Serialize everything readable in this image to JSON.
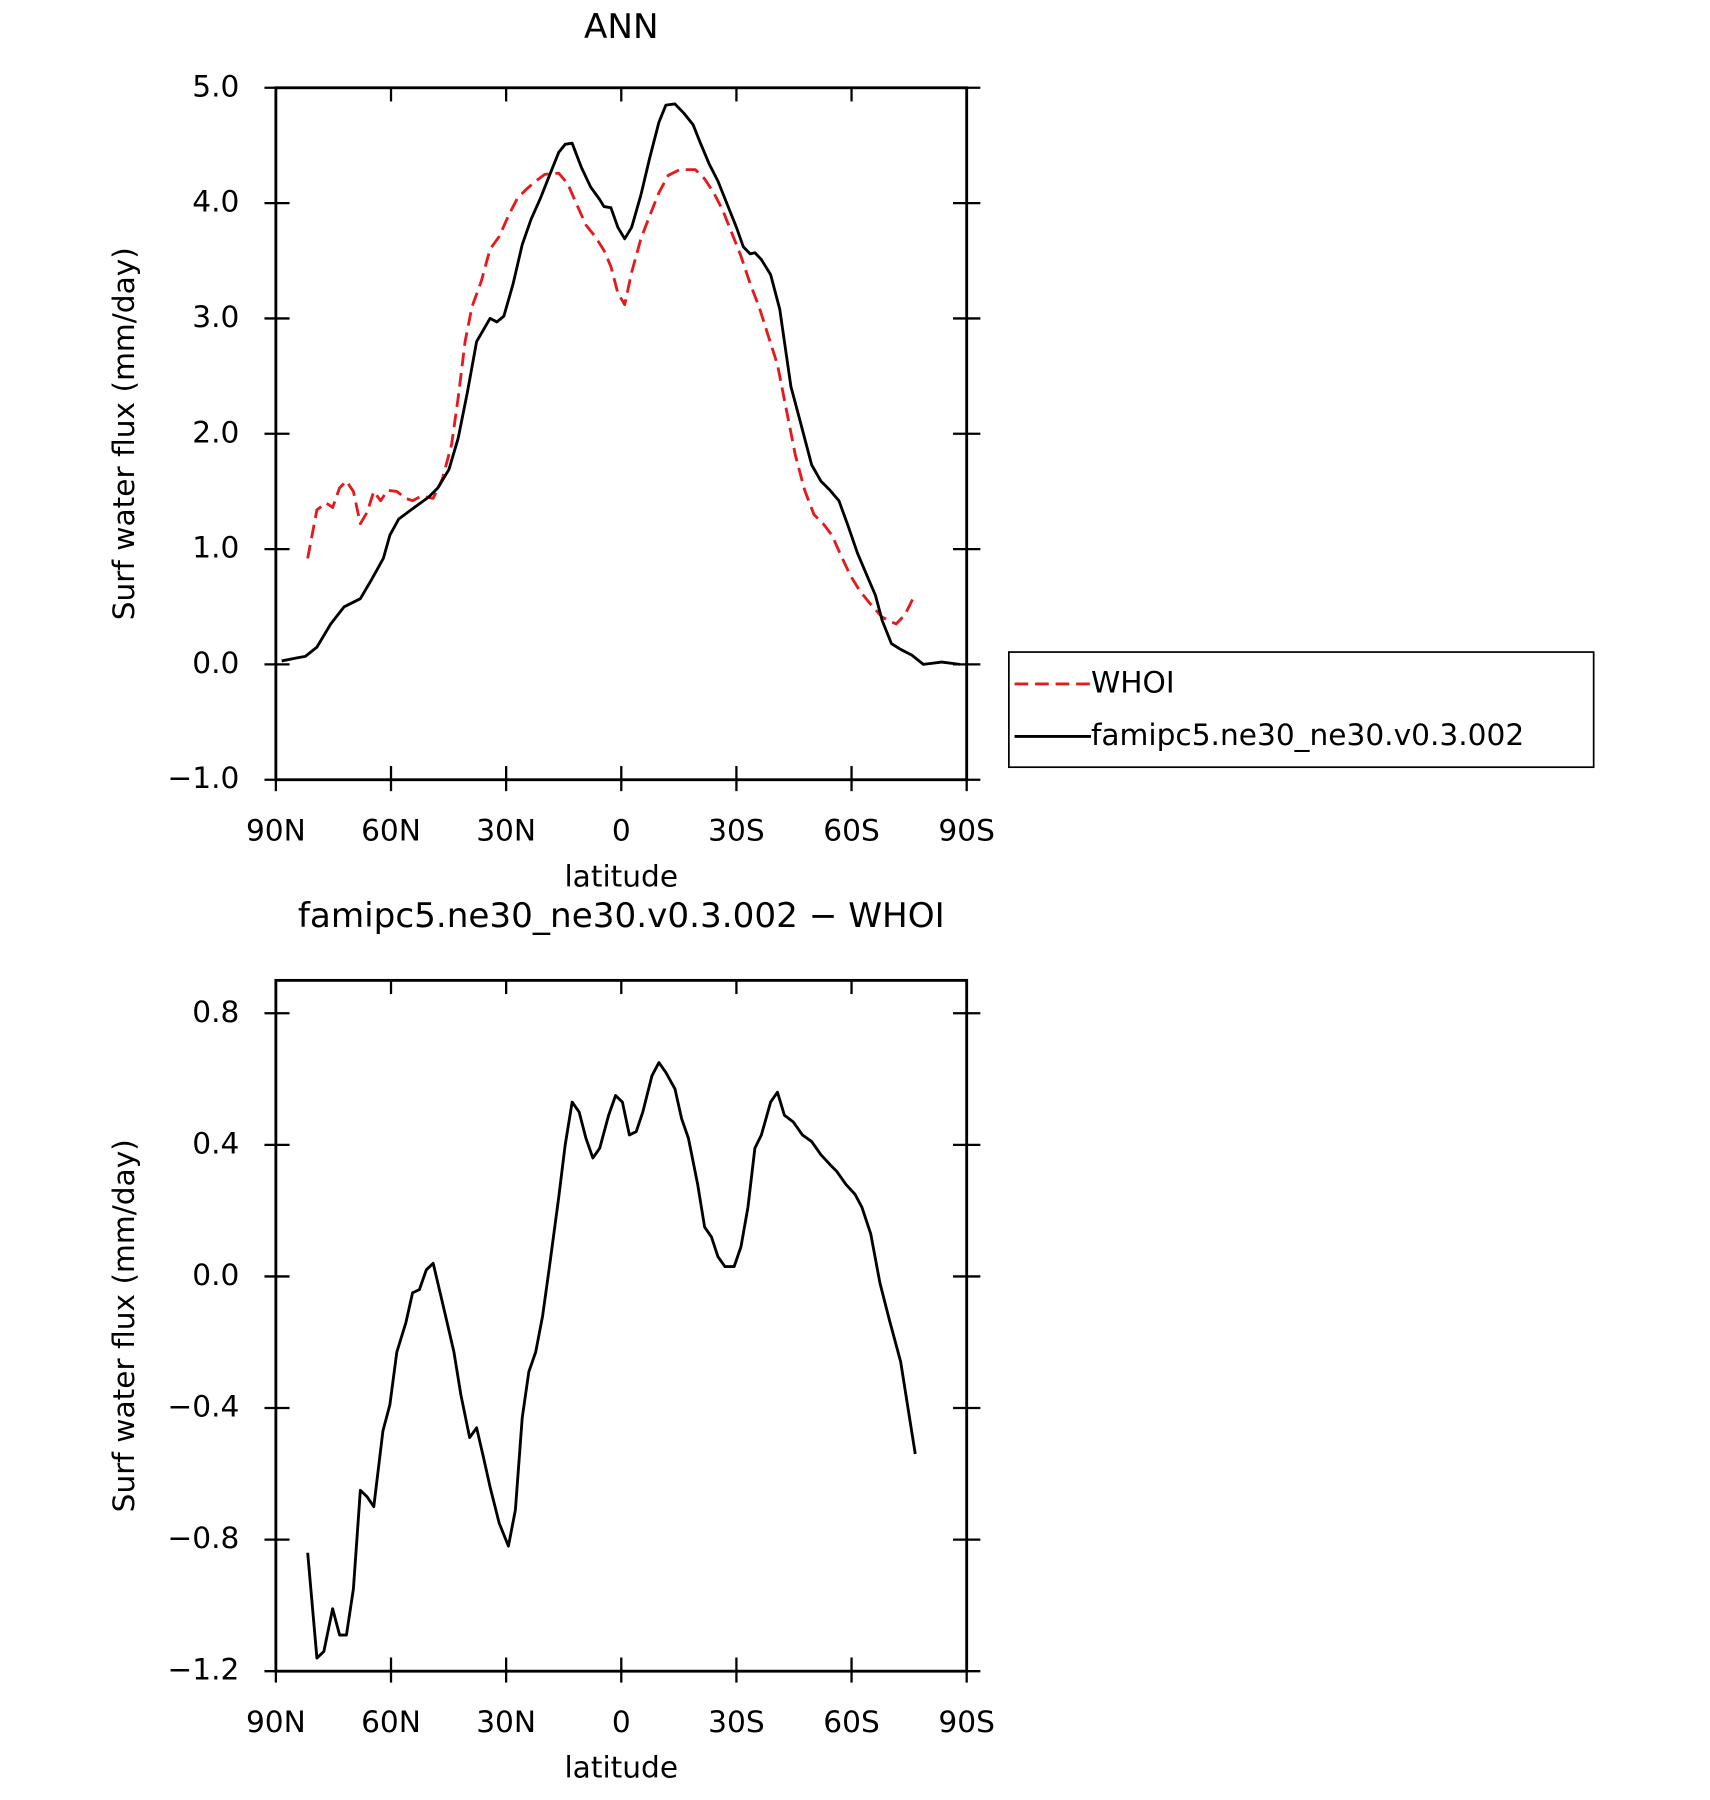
{
  "chart_data": [
    {
      "type": "line",
      "title": "ANN",
      "xlabel": "latitude",
      "ylabel": "Surf water flux (mm/day)",
      "xlim": [
        90,
        -90
      ],
      "xticks": [
        {
          "value": 90,
          "label": "90N"
        },
        {
          "value": 60,
          "label": "60N"
        },
        {
          "value": 30,
          "label": "30N"
        },
        0,
        {
          "value": -30,
          "label": "30S"
        },
        {
          "value": -60,
          "label": "60S"
        },
        {
          "value": -90,
          "label": "90S"
        }
      ],
      "ylim": [
        -1,
        5
      ],
      "yticks": [
        {
          "value": -1,
          "label": "−1.0"
        },
        {
          "value": 0,
          "label": "0.0"
        },
        {
          "value": 1,
          "label": "1.0"
        },
        {
          "value": 2,
          "label": "2.0"
        },
        {
          "value": 3,
          "label": "3.0"
        },
        {
          "value": 4,
          "label": "4.0"
        },
        {
          "value": 5,
          "label": "5.0"
        }
      ],
      "legend": "right",
      "series": [
        {
          "name": "WHOI",
          "color": "#e41a1c",
          "line_style": "dashed",
          "x": [
            81.7,
            79.3,
            76.9,
            75.2,
            73.4,
            71.6,
            69.8,
            68,
            66.2,
            64.5,
            62.7,
            60.9,
            58.5,
            56.1,
            54.4,
            52,
            49,
            46.6,
            44.2,
            42.5,
            40.7,
            38.9,
            36.5,
            34.2,
            31.8,
            29.4,
            27.1,
            24.7,
            22.3,
            19.9,
            16.3,
            14,
            11.6,
            9.2,
            6.8,
            4.5,
            2.7,
            0.9,
            -0.9,
            -2.7,
            -5.1,
            -7.4,
            -9.8,
            -12.2,
            -15.2,
            -19.3,
            -21.7,
            -24.1,
            -26.4,
            -28.8,
            -31.2,
            -33.6,
            -35.9,
            -38.3,
            -40.7,
            -43,
            -45.4,
            -47.8,
            -50.2,
            -52.6,
            -54.9,
            -57.3,
            -59.7,
            -62.1,
            -65,
            -68,
            -71.6,
            -73.9,
            -76.6
          ],
          "values": [
            0.92,
            1.34,
            1.4,
            1.36,
            1.53,
            1.59,
            1.5,
            1.22,
            1.32,
            1.5,
            1.42,
            1.51,
            1.5,
            1.44,
            1.42,
            1.46,
            1.44,
            1.61,
            1.91,
            2.31,
            2.8,
            3.1,
            3.32,
            3.6,
            3.71,
            3.89,
            4.04,
            4.12,
            4.19,
            4.25,
            4.26,
            4.17,
            3.99,
            3.81,
            3.71,
            3.59,
            3.45,
            3.22,
            3.12,
            3.4,
            3.69,
            3.89,
            4.09,
            4.24,
            4.29,
            4.29,
            4.21,
            4.09,
            3.94,
            3.74,
            3.54,
            3.3,
            3.1,
            2.85,
            2.6,
            2.21,
            1.81,
            1.51,
            1.3,
            1.22,
            1.12,
            0.94,
            0.77,
            0.64,
            0.52,
            0.41,
            0.35,
            0.43,
            0.61
          ]
        },
        {
          "name": "famipc5.ne30_ne30.v0.3.002",
          "color": "#000000",
          "line_style": "solid",
          "x": [
            88.5,
            84,
            82.3,
            79.3,
            75.7,
            72.2,
            68,
            65,
            62,
            60.3,
            58,
            54.4,
            50.2,
            47.8,
            44.9,
            42.5,
            40.1,
            37.7,
            34.2,
            32.4,
            30.6,
            28.2,
            25.8,
            23.5,
            21.1,
            18.7,
            16.3,
            14.6,
            12.8,
            10.4,
            8,
            5.6,
            4.5,
            2.7,
            0.9,
            -0.9,
            -2.7,
            -5.1,
            -7.4,
            -9.8,
            -11.6,
            -14,
            -16.3,
            -18.7,
            -20.5,
            -22.9,
            -25.2,
            -27.6,
            -30,
            -31.8,
            -33.6,
            -34.8,
            -36.5,
            -38.9,
            -41.3,
            -44.2,
            -46.6,
            -49.6,
            -52,
            -54.4,
            -56.7,
            -59.1,
            -61.5,
            -63.9,
            -66.2,
            -68,
            -70.4,
            -72.8,
            -75.7,
            -78.7,
            -83.5,
            -88.2
          ],
          "values": [
            0.03,
            0.06,
            0.07,
            0.15,
            0.35,
            0.5,
            0.57,
            0.74,
            0.92,
            1.12,
            1.26,
            1.35,
            1.45,
            1.53,
            1.69,
            1.96,
            2.36,
            2.8,
            3,
            2.97,
            3.02,
            3.3,
            3.64,
            3.86,
            4.04,
            4.24,
            4.44,
            4.51,
            4.52,
            4.31,
            4.14,
            4.03,
            3.97,
            3.96,
            3.79,
            3.69,
            3.79,
            4.07,
            4.39,
            4.7,
            4.85,
            4.86,
            4.78,
            4.68,
            4.53,
            4.34,
            4.19,
            3.99,
            3.79,
            3.62,
            3.56,
            3.57,
            3.51,
            3.38,
            3.08,
            2.41,
            2.11,
            1.73,
            1.59,
            1.51,
            1.42,
            1.2,
            0.97,
            0.78,
            0.6,
            0.38,
            0.18,
            0.13,
            0.08,
            0,
            0.02,
            0
          ]
        }
      ]
    },
    {
      "type": "line",
      "title": "famipc5.ne30_ne30.v0.3.002 − WHOI",
      "xlabel": "latitude",
      "ylabel": "Surf water flux (mm/day)",
      "xlim": [
        90,
        -90
      ],
      "xticks": [
        {
          "value": 90,
          "label": "90N"
        },
        {
          "value": 60,
          "label": "60N"
        },
        {
          "value": 30,
          "label": "30N"
        },
        0,
        {
          "value": -30,
          "label": "30S"
        },
        {
          "value": -60,
          "label": "60S"
        },
        {
          "value": -90,
          "label": "90S"
        }
      ],
      "ylim": [
        -1.2,
        0.9
      ],
      "yticks": [
        {
          "value": -1.2,
          "label": "−1.2"
        },
        {
          "value": -0.8,
          "label": "−0.8"
        },
        {
          "value": -0.4,
          "label": "−0.4"
        },
        {
          "value": 0,
          "label": "0.0"
        },
        0.4,
        0.8
      ],
      "series": [
        {
          "color": "#000000",
          "line_style": "solid",
          "x": [
            81.7,
            79.3,
            77.5,
            75.2,
            73.4,
            71.6,
            69.8,
            68,
            66.2,
            64.5,
            62.1,
            60.3,
            58.5,
            56.1,
            54.4,
            52.6,
            50.8,
            49,
            47.2,
            45.4,
            43.6,
            41.8,
            39.5,
            37.7,
            35.9,
            34.2,
            31.8,
            29.4,
            27.6,
            25.8,
            24.1,
            22.3,
            20.5,
            18.7,
            16.3,
            14.6,
            12.8,
            11,
            9.2,
            7.4,
            5.6,
            3.3,
            1.5,
            -0.3,
            -2.1,
            -3.9,
            -5.6,
            -8,
            -9.8,
            -11.6,
            -14,
            -15.7,
            -17.5,
            -19.9,
            -21.7,
            -23.5,
            -25.2,
            -27,
            -29.4,
            -31.2,
            -33,
            -34.8,
            -36.5,
            -38.9,
            -40.7,
            -42.5,
            -44.8,
            -47.2,
            -49.6,
            -52,
            -54.4,
            -56.1,
            -58.5,
            -60.9,
            -62.7,
            -65,
            -67.4,
            -69.8,
            -72.8,
            -76.6
          ],
          "values": [
            -0.84,
            -1.16,
            -1.14,
            -1.01,
            -1.09,
            -1.09,
            -0.95,
            -0.65,
            -0.67,
            -0.7,
            -0.47,
            -0.39,
            -0.23,
            -0.14,
            -0.05,
            -0.04,
            0.02,
            0.04,
            -0.05,
            -0.14,
            -0.23,
            -0.36,
            -0.49,
            -0.46,
            -0.55,
            -0.64,
            -0.75,
            -0.82,
            -0.71,
            -0.43,
            -0.29,
            -0.23,
            -0.12,
            0.03,
            0.24,
            0.4,
            0.53,
            0.5,
            0.42,
            0.36,
            0.39,
            0.49,
            0.55,
            0.53,
            0.43,
            0.44,
            0.5,
            0.61,
            0.65,
            0.62,
            0.57,
            0.48,
            0.42,
            0.28,
            0.15,
            0.12,
            0.06,
            0.03,
            0.03,
            0.09,
            0.21,
            0.39,
            0.43,
            0.53,
            0.56,
            0.49,
            0.47,
            0.43,
            0.41,
            0.37,
            0.34,
            0.32,
            0.28,
            0.25,
            0.21,
            0.13,
            -0.02,
            -0.13,
            -0.26,
            -0.54
          ]
        }
      ]
    }
  ]
}
